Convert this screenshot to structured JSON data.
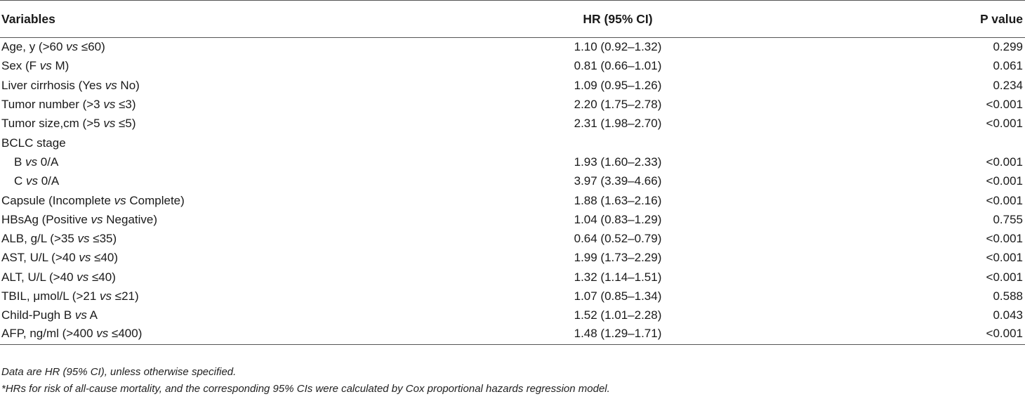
{
  "table": {
    "headers": {
      "variables": "Variables",
      "hr": "HR (95% CI)",
      "p": "P value"
    },
    "rows": [
      {
        "pre": "Age, y (>60 ",
        "vs": "vs",
        "post": " ≤60)",
        "hr": "1.10 (0.92–1.32)",
        "p": "0.299",
        "indent": false
      },
      {
        "pre": "Sex (F ",
        "vs": "vs",
        "post": " M)",
        "hr": "0.81 (0.66–1.01)",
        "p": "0.061",
        "indent": false
      },
      {
        "pre": "Liver cirrhosis (Yes ",
        "vs": "vs",
        "post": " No)",
        "hr": "1.09 (0.95–1.26)",
        "p": "0.234",
        "indent": false
      },
      {
        "pre": "Tumor number (>3 ",
        "vs": "vs",
        "post": " ≤3)",
        "hr": "2.20 (1.75–2.78)",
        "p": "<0.001",
        "indent": false
      },
      {
        "pre": "Tumor size,cm (>5 ",
        "vs": "vs",
        "post": " ≤5)",
        "hr": "2.31 (1.98–2.70)",
        "p": "<0.001",
        "indent": false
      },
      {
        "pre": "BCLC stage",
        "vs": "",
        "post": "",
        "hr": "",
        "p": "",
        "indent": false
      },
      {
        "pre": "B ",
        "vs": "vs",
        "post": " 0/A",
        "hr": "1.93 (1.60–2.33)",
        "p": "<0.001",
        "indent": true
      },
      {
        "pre": "C ",
        "vs": "vs",
        "post": " 0/A",
        "hr": "3.97 (3.39–4.66)",
        "p": "<0.001",
        "indent": true
      },
      {
        "pre": "Capsule (Incomplete ",
        "vs": "vs",
        "post": " Complete)",
        "hr": "1.88 (1.63–2.16)",
        "p": "<0.001",
        "indent": false
      },
      {
        "pre": "HBsAg (Positive ",
        "vs": "vs",
        "post": " Negative)",
        "hr": "1.04 (0.83–1.29)",
        "p": "0.755",
        "indent": false
      },
      {
        "pre": "ALB, g/L (>35 ",
        "vs": "vs",
        "post": " ≤35)",
        "hr": "0.64 (0.52–0.79)",
        "p": "<0.001",
        "indent": false
      },
      {
        "pre": "AST, U/L (>40 ",
        "vs": "vs",
        "post": " ≤40)",
        "hr": "1.99 (1.73–2.29)",
        "p": "<0.001",
        "indent": false
      },
      {
        "pre": "ALT, U/L (>40 ",
        "vs": "vs",
        "post": " ≤40)",
        "hr": "1.32 (1.14–1.51)",
        "p": "<0.001",
        "indent": false
      },
      {
        "pre": "TBIL, μmol/L (>21 ",
        "vs": "vs",
        "post": " ≤21)",
        "hr": "1.07 (0.85–1.34)",
        "p": "0.588",
        "indent": false
      },
      {
        "pre": "Child-Pugh B ",
        "vs": "vs",
        "post": " A",
        "hr": "1.52 (1.01–2.28)",
        "p": "0.043",
        "indent": false
      },
      {
        "pre": "AFP, ng/ml (>400 ",
        "vs": "vs",
        "post": " ≤400)",
        "hr": "1.48 (1.29–1.71)",
        "p": "<0.001",
        "indent": false
      }
    ]
  },
  "footnotes": [
    "Data are HR (95% CI), unless otherwise specified.",
    "*HRs for risk of all-cause mortality, and the corresponding 95% CIs were calculated by Cox proportional hazards regression model."
  ]
}
